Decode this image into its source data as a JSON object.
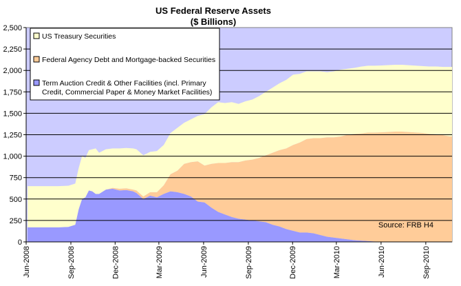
{
  "chart_data": {
    "type": "area",
    "stacked": true,
    "title": "US Federal Reserve Assets",
    "subtitle": "($ Billions)",
    "xlabel": "",
    "ylabel": "",
    "ylim": [
      0,
      2500
    ],
    "y_ticks": [
      "0",
      "250",
      "500",
      "750",
      "1,000",
      "1,250",
      "1,500",
      "1,750",
      "2,000",
      "2,250",
      "2,500"
    ],
    "x_ticks": [
      "Jun-2008",
      "Sep-2008",
      "Dec-2008",
      "Mar-2009",
      "Jun-2009",
      "Sep-2009",
      "Dec-2009",
      "Mar-2010",
      "Jun-2010",
      "Sep-2010"
    ],
    "grid": "horizontal",
    "legend_position": "top-left",
    "annotation": "Source: FRB H4",
    "x": [
      "2008-06-04",
      "2008-06-25",
      "2008-07-16",
      "2008-08-06",
      "2008-08-27",
      "2008-09-10",
      "2008-09-17",
      "2008-09-24",
      "2008-10-01",
      "2008-10-08",
      "2008-10-15",
      "2008-10-22",
      "2008-10-29",
      "2008-11-12",
      "2008-11-26",
      "2008-12-10",
      "2008-12-24",
      "2009-01-07",
      "2009-01-14",
      "2009-01-28",
      "2009-02-11",
      "2009-02-25",
      "2009-03-11",
      "2009-03-25",
      "2009-04-08",
      "2009-04-22",
      "2009-05-06",
      "2009-05-20",
      "2009-06-03",
      "2009-06-17",
      "2009-07-01",
      "2009-07-15",
      "2009-07-29",
      "2009-08-12",
      "2009-08-26",
      "2009-09-09",
      "2009-09-23",
      "2009-10-07",
      "2009-10-21",
      "2009-11-04",
      "2009-11-18",
      "2009-12-02",
      "2009-12-16",
      "2009-12-30",
      "2010-01-13",
      "2010-01-27",
      "2010-02-10",
      "2010-02-24",
      "2010-03-10",
      "2010-03-24",
      "2010-04-07",
      "2010-04-21",
      "2010-05-05",
      "2010-05-19",
      "2010-06-02",
      "2010-06-16",
      "2010-06-30",
      "2010-07-14",
      "2010-07-28",
      "2010-08-11",
      "2010-08-25",
      "2010-09-08",
      "2010-09-22",
      "2010-10-06",
      "2010-10-20"
    ],
    "series": [
      {
        "name": "Term Auction Credit & Other Facilities (incl. Primary Credit, Commercial Paper & Money Market Facilities)",
        "color": "#9999ff",
        "values": [
          170,
          170,
          170,
          170,
          175,
          200,
          380,
          500,
          520,
          600,
          590,
          560,
          560,
          610,
          620,
          600,
          605,
          590,
          570,
          500,
          540,
          520,
          560,
          590,
          580,
          560,
          530,
          470,
          460,
          400,
          350,
          320,
          290,
          270,
          260,
          250,
          240,
          230,
          200,
          180,
          150,
          130,
          110,
          110,
          100,
          80,
          60,
          50,
          40,
          30,
          20,
          15,
          10,
          5,
          3,
          2,
          1,
          1,
          1,
          1,
          1,
          1,
          1,
          1,
          1
        ]
      },
      {
        "name": "Federal Agency Debt and Mortgage-backed Securities",
        "color": "#ffcc99",
        "values": [
          0,
          0,
          0,
          0,
          0,
          0,
          0,
          0,
          0,
          0,
          0,
          0,
          0,
          0,
          10,
          20,
          20,
          20,
          30,
          30,
          40,
          60,
          100,
          200,
          250,
          350,
          400,
          470,
          430,
          510,
          570,
          600,
          640,
          660,
          690,
          710,
          740,
          780,
          840,
          890,
          940,
          1000,
          1050,
          1090,
          1110,
          1130,
          1160,
          1170,
          1190,
          1220,
          1240,
          1250,
          1265,
          1270,
          1275,
          1280,
          1285,
          1285,
          1280,
          1275,
          1270,
          1260,
          1255,
          1245,
          1230
        ]
      },
      {
        "name": "US Treasury Securities",
        "color": "#ffffcc",
        "values": [
          480,
          480,
          480,
          480,
          480,
          480,
          480,
          500,
          460,
          470,
          490,
          530,
          480,
          470,
          460,
          470,
          470,
          480,
          480,
          480,
          470,
          480,
          470,
          480,
          500,
          480,
          500,
          530,
          600,
          660,
          710,
          700,
          700,
          680,
          690,
          700,
          720,
          740,
          760,
          780,
          800,
          820,
          800,
          790,
          780,
          780,
          760,
          770,
          780,
          770,
          770,
          780,
          780,
          780,
          780,
          780,
          780,
          780,
          780,
          780,
          780,
          785,
          790,
          795,
          810
        ]
      }
    ]
  }
}
